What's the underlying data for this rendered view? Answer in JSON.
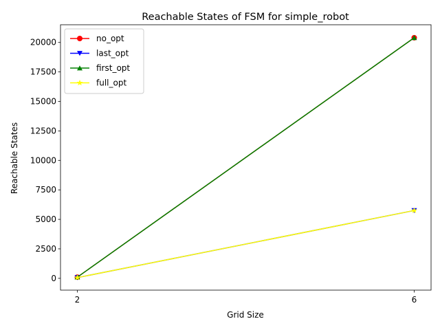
{
  "chart_data": {
    "type": "line",
    "title": "Reachable States of FSM for simple_robot",
    "xlabel": "Grid Size",
    "ylabel": "Reachable States",
    "x": [
      2,
      6
    ],
    "xlim": [
      1.8,
      6.2
    ],
    "ylim": [
      -1000,
      21500
    ],
    "yticks": [
      0,
      2500,
      5000,
      7500,
      10000,
      12500,
      15000,
      17500,
      20000
    ],
    "ytick_labels": [
      "0",
      "2500",
      "5000",
      "7500",
      "10000",
      "12500",
      "15000",
      "17500",
      "20000"
    ],
    "xticks": [
      2,
      6
    ],
    "xtick_labels": [
      "2",
      "6"
    ],
    "grid": false,
    "legend_position": "top-left",
    "series": [
      {
        "name": "no_opt",
        "values": [
          100,
          20400
        ],
        "color": "#ff0000",
        "marker": "circle"
      },
      {
        "name": "last_opt",
        "values": [
          60,
          5750
        ],
        "color": "#0000ff",
        "marker": "triangle-down"
      },
      {
        "name": "first_opt",
        "values": [
          100,
          20400
        ],
        "color": "#008000",
        "marker": "triangle-up"
      },
      {
        "name": "full_opt",
        "values": [
          60,
          5750
        ],
        "color": "#ffff00",
        "marker": "star"
      }
    ]
  }
}
